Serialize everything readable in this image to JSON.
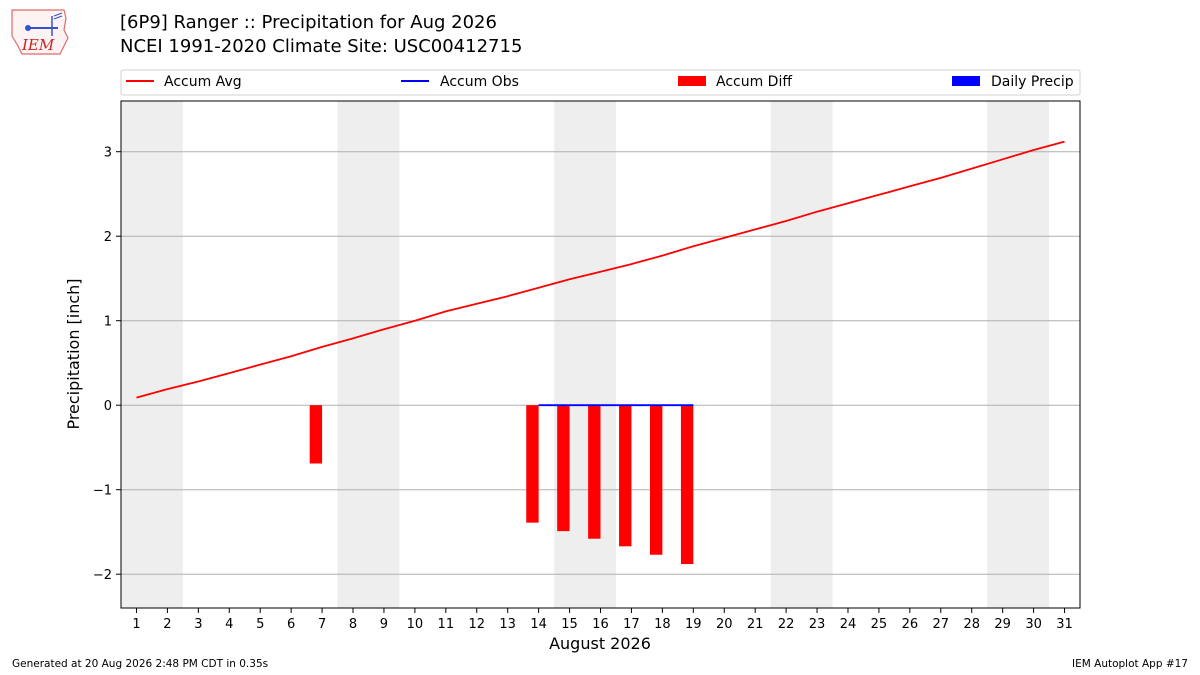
{
  "header": {
    "title": "[6P9] Ranger :: Precipitation for Aug 2026",
    "subtitle": "NCEI 1991-2020 Climate Site: USC00412715",
    "logo_text": "IEM"
  },
  "footer": {
    "generated": "Generated at 20 Aug 2026 2:48 PM CDT in 0.35s",
    "app": "IEM Autoplot App #17"
  },
  "colors": {
    "accum_avg": "#ff0000",
    "accum_obs": "#0000ff",
    "accum_diff": "#ff0000",
    "daily_precip": "#0000ff",
    "weekend_shade": "#eeeeee",
    "grid": "#b0b0b0"
  },
  "chart_data": {
    "type": "bar",
    "xlabel": "August 2026",
    "ylabel": "Precipitation [inch]",
    "xlim": [
      0.5,
      31.5
    ],
    "ylim": [
      -2.4,
      3.6
    ],
    "x_ticks": [
      1,
      2,
      3,
      4,
      5,
      6,
      7,
      8,
      9,
      10,
      11,
      12,
      13,
      14,
      15,
      16,
      17,
      18,
      19,
      20,
      21,
      22,
      23,
      24,
      25,
      26,
      27,
      28,
      29,
      30,
      31
    ],
    "y_ticks": [
      -2,
      -1,
      0,
      1,
      2,
      3
    ],
    "y_tick_labels": [
      "−2",
      "−1",
      "0",
      "1",
      "2",
      "3"
    ],
    "grid": "horizontal",
    "legend": {
      "placement": "top",
      "entries": [
        {
          "name": "Accum Avg",
          "kind": "line",
          "color": "#ff0000"
        },
        {
          "name": "Accum Obs",
          "kind": "line",
          "color": "#0000ff"
        },
        {
          "name": "Accum Diff",
          "kind": "bar",
          "color": "#ff0000"
        },
        {
          "name": "Daily Precip",
          "kind": "bar",
          "color": "#0000ff"
        }
      ]
    },
    "weekend_spans": [
      [
        0.5,
        2.5
      ],
      [
        7.5,
        9.5
      ],
      [
        14.5,
        16.5
      ],
      [
        21.5,
        23.5
      ],
      [
        28.5,
        30.5
      ]
    ],
    "series": [
      {
        "name": "Accum Avg",
        "type": "line",
        "x": [
          1,
          2,
          3,
          4,
          5,
          6,
          7,
          8,
          9,
          10,
          11,
          12,
          13,
          14,
          15,
          16,
          17,
          18,
          19,
          20,
          21,
          22,
          23,
          24,
          25,
          26,
          27,
          28,
          29,
          30,
          31
        ],
        "values": [
          0.09,
          0.19,
          0.28,
          0.38,
          0.48,
          0.58,
          0.69,
          0.79,
          0.9,
          1.0,
          1.11,
          1.2,
          1.29,
          1.39,
          1.49,
          1.58,
          1.67,
          1.77,
          1.88,
          1.98,
          2.08,
          2.18,
          2.29,
          2.39,
          2.49,
          2.59,
          2.69,
          2.8,
          2.91,
          3.02,
          3.12
        ]
      },
      {
        "name": "Accum Obs",
        "type": "line",
        "x": [
          14,
          15,
          16,
          17,
          18,
          19
        ],
        "values": [
          0.0,
          0.0,
          0.0,
          0.0,
          0.0,
          0.0
        ]
      },
      {
        "name": "Accum Diff",
        "type": "bar",
        "x": [
          6.8,
          13.8,
          14.8,
          15.8,
          16.8,
          17.8,
          18.8
        ],
        "values": [
          -0.69,
          -1.39,
          -1.49,
          -1.58,
          -1.67,
          -1.77,
          -1.88
        ]
      },
      {
        "name": "Daily Precip",
        "type": "bar",
        "x": [],
        "values": []
      }
    ]
  }
}
